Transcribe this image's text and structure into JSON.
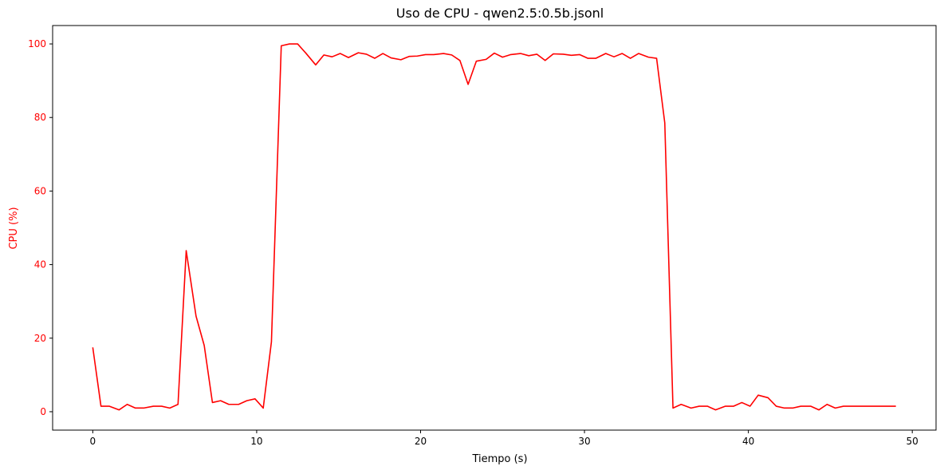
{
  "chart_data": {
    "type": "line",
    "title": "Uso de CPU - qwen2.5:0.5b.jsonl",
    "xlabel": "Tiempo (s)",
    "ylabel": "CPU (%)",
    "xlim": [
      -2.45,
      51.45
    ],
    "ylim": [
      -5,
      105
    ],
    "xticks": [
      0,
      10,
      20,
      30,
      40,
      50
    ],
    "yticks": [
      0,
      20,
      40,
      60,
      80,
      100
    ],
    "grid": false,
    "legend": "none",
    "colors": {
      "series": "#ff0000",
      "ylabel": "#ff0000",
      "yticks": "#ff0000",
      "axes": "#000000"
    },
    "series": [
      {
        "x": [
          0.0,
          0.5,
          1.0,
          1.6,
          2.1,
          2.6,
          3.1,
          3.7,
          4.2,
          4.7,
          5.2,
          5.7,
          6.3,
          6.8,
          7.3,
          7.8,
          8.3,
          8.9,
          9.4,
          9.9,
          10.4,
          10.9,
          11.5,
          12.0,
          12.5,
          13.0,
          13.6,
          14.1,
          14.6,
          15.1,
          15.6,
          16.2,
          16.7,
          17.2,
          17.7,
          18.2,
          18.8,
          19.3,
          19.8,
          20.3,
          20.8,
          21.4,
          21.9,
          22.4,
          22.9,
          23.4,
          24.0,
          24.5,
          25.0,
          25.5,
          26.1,
          26.6,
          27.1,
          27.6,
          28.1,
          28.7,
          29.2,
          29.7,
          30.2,
          30.7,
          31.3,
          31.8,
          32.3,
          32.8,
          33.3,
          33.9,
          34.4,
          34.9,
          35.4,
          35.9,
          36.5,
          37.0,
          37.5,
          38.0,
          38.6,
          39.1,
          39.6,
          40.1,
          40.6,
          41.2,
          41.7,
          42.2,
          42.7,
          43.2,
          43.8,
          44.3,
          44.8,
          45.3,
          45.8,
          46.4,
          46.9,
          47.4,
          47.9,
          48.4,
          49.0
        ],
        "y": [
          17.5,
          1.5,
          1.5,
          0.5,
          2.0,
          1.0,
          1.0,
          1.5,
          1.5,
          1.0,
          2.0,
          43.8,
          26.0,
          18.0,
          2.5,
          3.0,
          2.0,
          2.0,
          3.0,
          3.5,
          1.0,
          19.0,
          99.5,
          100.0,
          100.0,
          97.5,
          94.3,
          97.0,
          96.5,
          97.4,
          96.3,
          97.6,
          97.2,
          96.1,
          97.4,
          96.2,
          95.7,
          96.6,
          96.7,
          97.1,
          97.1,
          97.4,
          97.0,
          95.5,
          89.0,
          95.3,
          95.8,
          97.5,
          96.4,
          97.1,
          97.4,
          96.8,
          97.2,
          95.5,
          97.3,
          97.2,
          96.9,
          97.1,
          96.1,
          96.1,
          97.4,
          96.5,
          97.4,
          96.1,
          97.4,
          96.4,
          96.1,
          78.5,
          1.0,
          2.0,
          1.0,
          1.5,
          1.5,
          0.5,
          1.5,
          1.5,
          2.5,
          1.5,
          4.5,
          3.8,
          1.5,
          1.0,
          1.0,
          1.5,
          1.5,
          0.5,
          2.0,
          1.0,
          1.5,
          1.5,
          1.5,
          1.5,
          1.5,
          1.5,
          1.5
        ]
      }
    ]
  }
}
